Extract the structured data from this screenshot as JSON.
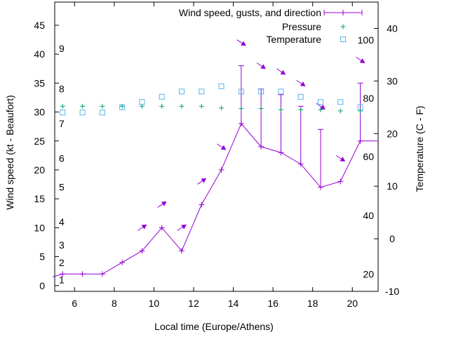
{
  "chart_data": {
    "type": "line",
    "title": "",
    "xlabel": "Local time (Europe/Athens)",
    "ylabel": "Wind speed (kt - Beaufort)",
    "y2label": "Temperature (C - F)",
    "xlim": [
      5,
      21.3
    ],
    "ylim": [
      -1,
      49
    ],
    "y2lim": [
      -10,
      45
    ],
    "x_ticks": [
      6,
      8,
      10,
      12,
      14,
      16,
      18,
      20
    ],
    "y_ticks": [
      0,
      5,
      10,
      15,
      20,
      25,
      30,
      35,
      40,
      45
    ],
    "y2_ticks": [
      -10,
      0,
      10,
      20,
      30,
      40
    ],
    "beaufort_labels": [
      {
        "text": "1",
        "y": 1
      },
      {
        "text": "2",
        "y": 4
      },
      {
        "text": "3",
        "y": 7
      },
      {
        "text": "4",
        "y": 11
      },
      {
        "text": "5",
        "y": 17
      },
      {
        "text": "6",
        "y": 22
      },
      {
        "text": "7",
        "y": 28
      },
      {
        "text": "8",
        "y": 34
      },
      {
        "text": "9",
        "y": 41
      }
    ],
    "fahrenheit_labels": [
      {
        "text": "20",
        "y2": -6.7
      },
      {
        "text": "40",
        "y2": 4.4
      },
      {
        "text": "60",
        "y2": 15.6
      },
      {
        "text": "80",
        "y2": 26.7
      },
      {
        "text": "100",
        "y2": 37.8
      }
    ],
    "legend_position": "top-right",
    "series": [
      {
        "name": "Wind speed, gusts, and direction",
        "color": "#9400d3",
        "x": [
          4.9,
          5.4,
          6.4,
          7.4,
          8.4,
          9.4,
          10.4,
          11.4,
          12.4,
          13.4,
          14.4,
          15.4,
          16.4,
          17.4,
          18.4,
          19.4,
          20.4,
          21.3
        ],
        "values": [
          1.5,
          2,
          2,
          2,
          4,
          6,
          10,
          6,
          14,
          20,
          28,
          24,
          23,
          21,
          17,
          18,
          25,
          25
        ],
        "gusts": [
          null,
          null,
          null,
          null,
          null,
          null,
          null,
          null,
          null,
          null,
          38,
          34,
          33,
          31,
          27,
          null,
          35,
          null
        ],
        "arrows": [
          {
            "x": 9.4,
            "y": 10,
            "dir": "NE"
          },
          {
            "x": 10.4,
            "y": 14,
            "dir": "NE"
          },
          {
            "x": 11.4,
            "y": 10,
            "dir": "NE"
          },
          {
            "x": 12.4,
            "y": 18,
            "dir": "NE"
          },
          {
            "x": 13.4,
            "y": 24,
            "dir": "SE"
          },
          {
            "x": 14.4,
            "y": 42,
            "dir": "SE"
          },
          {
            "x": 15.4,
            "y": 38,
            "dir": "SE"
          },
          {
            "x": 16.4,
            "y": 37,
            "dir": "SE"
          },
          {
            "x": 17.4,
            "y": 35,
            "dir": "SE"
          },
          {
            "x": 18.4,
            "y": 31,
            "dir": "SE"
          },
          {
            "x": 19.4,
            "y": 22,
            "dir": "SE"
          },
          {
            "x": 20.4,
            "y": 39,
            "dir": "SE"
          }
        ]
      },
      {
        "name": "Pressure",
        "color": "#009e73",
        "marker": "plus",
        "x": [
          5.4,
          6.4,
          7.4,
          8.4,
          9.4,
          10.4,
          11.4,
          12.4,
          13.4,
          14.4,
          15.4,
          16.4,
          17.4,
          18.4,
          19.4,
          20.4
        ],
        "values": [
          31,
          31,
          31,
          31,
          31,
          31,
          31,
          31,
          30.7,
          30.6,
          30.6,
          30.4,
          30.4,
          30.4,
          30.2,
          30.2
        ]
      },
      {
        "name": "Temperature",
        "color": "#56b4e9",
        "marker": "square",
        "axis": "y2",
        "x": [
          5.4,
          6.4,
          7.4,
          8.4,
          9.4,
          10.4,
          11.4,
          12.4,
          13.4,
          14.4,
          15.4,
          16.4,
          17.4,
          18.4,
          19.4,
          20.4
        ],
        "values": [
          24,
          24,
          24,
          25,
          26,
          27,
          28,
          28,
          29,
          28,
          28,
          28,
          27,
          26,
          26,
          25
        ]
      }
    ]
  }
}
